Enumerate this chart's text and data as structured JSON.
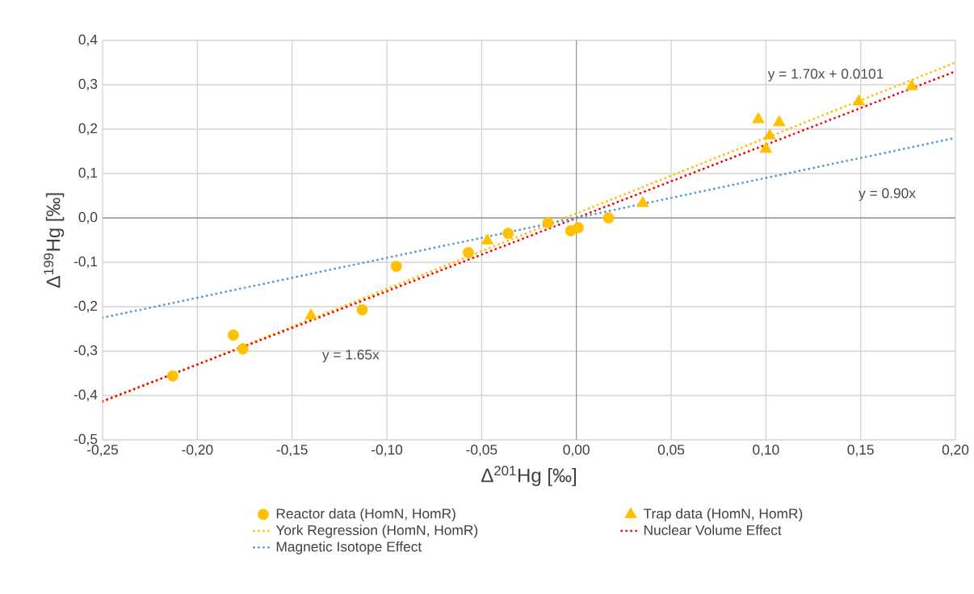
{
  "chart_data": {
    "type": "scatter",
    "xlabel": "Δ$^{201}$Hg [‰]",
    "ylabel": "Δ$^{199}$Hg [‰]",
    "xlim": [
      -0.25,
      0.2
    ],
    "ylim": [
      -0.5,
      0.4
    ],
    "xticks": [
      {
        "value": -0.25,
        "label": "-0,25"
      },
      {
        "value": -0.2,
        "label": "-0,20"
      },
      {
        "value": -0.15,
        "label": "-0,15"
      },
      {
        "value": -0.1,
        "label": "-0,10"
      },
      {
        "value": -0.05,
        "label": "-0,05"
      },
      {
        "value": 0,
        "label": "0,00"
      },
      {
        "value": 0.05,
        "label": "0,05"
      },
      {
        "value": 0.1,
        "label": "0,10"
      },
      {
        "value": 0.15,
        "label": "0,15"
      },
      {
        "value": 0.2,
        "label": "0,20"
      }
    ],
    "yticks": [
      {
        "value": -0.5,
        "label": "-0,5"
      },
      {
        "value": -0.4,
        "label": "-0,4"
      },
      {
        "value": -0.3,
        "label": "-0,3"
      },
      {
        "value": -0.2,
        "label": "-0,2"
      },
      {
        "value": -0.1,
        "label": "-0,1"
      },
      {
        "value": 0,
        "label": "0,0"
      },
      {
        "value": 0.1,
        "label": "0,1"
      },
      {
        "value": 0.2,
        "label": "0,2"
      },
      {
        "value": 0.3,
        "label": "0,3"
      },
      {
        "value": 0.4,
        "label": "0,4"
      }
    ],
    "grid": true,
    "legend": "bottom",
    "series": [
      {
        "name": "Reactor data (HomN, HomR)",
        "marker": "circle",
        "color": "#ffc000",
        "x": [
          -0.213,
          -0.181,
          -0.176,
          -0.113,
          -0.095,
          -0.057,
          -0.036,
          -0.015,
          -0.003,
          0.001,
          0.017
        ],
        "values": [
          -0.356,
          -0.264,
          -0.295,
          -0.207,
          -0.109,
          -0.078,
          -0.035,
          -0.011,
          -0.029,
          -0.022,
          0.0
        ]
      },
      {
        "name": "Trap data (HomN, HomR)",
        "marker": "triangle",
        "color": "#ffc000",
        "x": [
          -0.14,
          -0.047,
          0.035,
          0.096,
          0.1,
          0.102,
          0.107,
          0.149,
          0.177
        ],
        "values": [
          -0.22,
          -0.051,
          0.033,
          0.222,
          0.155,
          0.185,
          0.215,
          0.262,
          0.296
        ]
      },
      {
        "name": "York Regression (HomN, HomR)",
        "type": "line",
        "marker": "none",
        "line_style": "dotted",
        "color": "#ffc000",
        "x": [
          -0.25,
          0.2
        ],
        "values": [
          -0.415,
          0.35
        ]
      },
      {
        "name": "Nuclear Volume Effect",
        "type": "line",
        "marker": "none",
        "line_style": "dotted",
        "color": "#ff0000",
        "x": [
          -0.25,
          0.2
        ],
        "values": [
          -0.413,
          0.33
        ]
      },
      {
        "name": "Magnetic Isotope Effect",
        "type": "line",
        "marker": "none",
        "line_style": "dotted",
        "color": "#5b9bd5",
        "x": [
          -0.25,
          0.2
        ],
        "values": [
          -0.225,
          0.18
        ]
      }
    ],
    "annotations": [
      "y = 1.70x + 0.0101",
      "y = 0.90x",
      "y = 1.65x"
    ]
  }
}
